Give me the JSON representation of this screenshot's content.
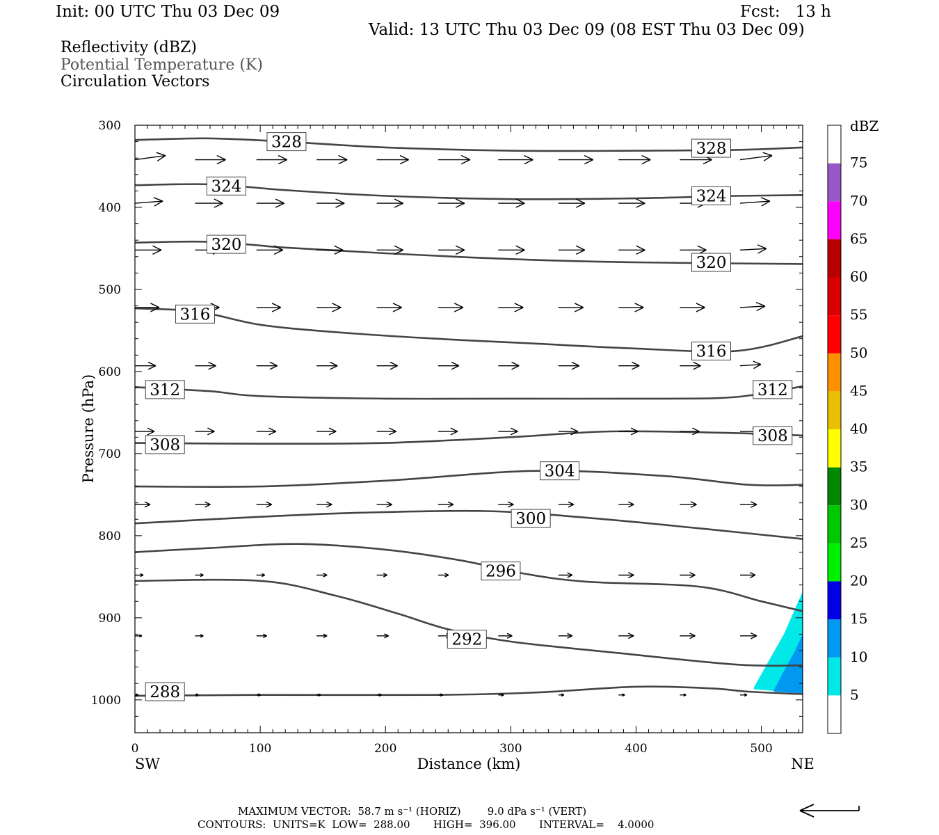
{
  "header": {
    "init": "Init: 00 UTC Thu 03 Dec 09",
    "fcst": "Fcst:   13 h",
    "valid": "Valid: 13 UTC Thu 03 Dec 09 (08 EST Thu 03 Dec 09)",
    "fields": [
      "Reflectivity (dBZ)",
      "Potential Temperature (K)",
      "Circulation Vectors"
    ]
  },
  "footer": {
    "max_vector": "MAXIMUM VECTOR:  58.7 m s⁻¹ (HORIZ)        9.0 dPa s⁻¹ (VERT)",
    "contours": "CONTOURS:  UNITS=K  LOW=  288.00       HIGH=  396.00       INTERVAL=    4.0000"
  },
  "chart_data": {
    "type": "cross-section",
    "xlabel": "Distance (km)",
    "ylabel": "Pressure (hPa)",
    "xlim": [
      0,
      533
    ],
    "ylim": [
      1040,
      300
    ],
    "x_ticks": [
      0,
      100,
      200,
      300,
      400,
      500
    ],
    "y_ticks": [
      300,
      400,
      500,
      600,
      700,
      800,
      900,
      1000
    ],
    "x_end_labels": {
      "left": "SW",
      "right": "NE"
    },
    "colorbar": {
      "unit": "dBZ",
      "levels": [
        5,
        10,
        15,
        20,
        25,
        30,
        35,
        40,
        45,
        50,
        55,
        60,
        65,
        70,
        75
      ],
      "colors": [
        "#ffffff",
        "#00e8e8",
        "#0098f0",
        "#0000e8",
        "#00f000",
        "#00c800",
        "#008800",
        "#ffff00",
        "#e8c000",
        "#ff9000",
        "#ff0000",
        "#d80000",
        "#b80000",
        "#ff00ff",
        "#9858c8",
        "#ffffff"
      ]
    },
    "reflectivity_areas": [
      {
        "dbz_min": 5,
        "color": "#00e8e8",
        "points": [
          [
            494,
            985
          ],
          [
            505,
            955
          ],
          [
            518,
            920
          ],
          [
            533,
            868
          ],
          [
            533,
            992
          ],
          [
            494,
            987
          ]
        ]
      },
      {
        "dbz_min": 10,
        "color": "#0098f0",
        "points": [
          [
            510,
            988
          ],
          [
            518,
            965
          ],
          [
            527,
            940
          ],
          [
            533,
            920
          ],
          [
            533,
            992
          ],
          [
            510,
            990
          ]
        ]
      }
    ],
    "theta_contours": [
      {
        "level": 328,
        "points": [
          [
            0,
            318
          ],
          [
            60,
            316
          ],
          [
            120,
            320
          ],
          [
            200,
            327
          ],
          [
            300,
            331
          ],
          [
            400,
            331
          ],
          [
            480,
            330
          ],
          [
            533,
            327
          ]
        ],
        "labels": [
          [
            121,
            320
          ],
          [
            460,
            328
          ]
        ]
      },
      {
        "level": 324,
        "points": [
          [
            0,
            373
          ],
          [
            60,
            372
          ],
          [
            120,
            379
          ],
          [
            200,
            386
          ],
          [
            300,
            390
          ],
          [
            400,
            389
          ],
          [
            480,
            386
          ],
          [
            533,
            385
          ]
        ],
        "labels": [
          [
            73,
            374
          ],
          [
            460,
            386
          ]
        ]
      },
      {
        "level": 320,
        "points": [
          [
            0,
            443
          ],
          [
            60,
            442
          ],
          [
            120,
            449
          ],
          [
            200,
            456
          ],
          [
            300,
            463
          ],
          [
            400,
            467
          ],
          [
            533,
            469
          ]
        ],
        "labels": [
          [
            73,
            445
          ],
          [
            460,
            467
          ]
        ]
      },
      {
        "level": 316,
        "points": [
          [
            0,
            523
          ],
          [
            50,
            527
          ],
          [
            100,
            543
          ],
          [
            160,
            552
          ],
          [
            240,
            560
          ],
          [
            320,
            566
          ],
          [
            400,
            572
          ],
          [
            480,
            575
          ],
          [
            533,
            557
          ]
        ],
        "labels": [
          [
            48,
            530
          ],
          [
            460,
            575
          ]
        ]
      },
      {
        "level": 312,
        "points": [
          [
            0,
            619
          ],
          [
            60,
            624
          ],
          [
            100,
            630
          ],
          [
            200,
            633
          ],
          [
            300,
            633
          ],
          [
            420,
            633
          ],
          [
            480,
            631
          ],
          [
            533,
            618
          ]
        ],
        "labels": [
          [
            24,
            622
          ],
          [
            509,
            622
          ]
        ]
      },
      {
        "level": 308,
        "points": [
          [
            0,
            687
          ],
          [
            100,
            688
          ],
          [
            200,
            687
          ],
          [
            300,
            680
          ],
          [
            380,
            673
          ],
          [
            480,
            675
          ],
          [
            533,
            678
          ]
        ],
        "labels": [
          [
            24,
            689
          ],
          [
            509,
            678
          ]
        ]
      },
      {
        "level": 304,
        "points": [
          [
            0,
            740
          ],
          [
            100,
            740
          ],
          [
            200,
            733
          ],
          [
            320,
            721
          ],
          [
            420,
            727
          ],
          [
            490,
            738
          ],
          [
            533,
            738
          ]
        ],
        "labels": [
          [
            339,
            721
          ]
        ]
      },
      {
        "level": 300,
        "points": [
          [
            0,
            785
          ],
          [
            100,
            777
          ],
          [
            180,
            772
          ],
          [
            280,
            770
          ],
          [
            360,
            778
          ],
          [
            450,
            791
          ],
          [
            533,
            804
          ]
        ],
        "labels": [
          [
            316,
            779
          ]
        ]
      },
      {
        "level": 296,
        "points": [
          [
            0,
            820
          ],
          [
            60,
            815
          ],
          [
            130,
            810
          ],
          [
            200,
            817
          ],
          [
            260,
            830
          ],
          [
            310,
            846
          ],
          [
            360,
            856
          ],
          [
            450,
            862
          ],
          [
            500,
            880
          ],
          [
            533,
            892
          ]
        ],
        "labels": [
          [
            292,
            843
          ]
        ]
      },
      {
        "level": 292,
        "points": [
          [
            0,
            855
          ],
          [
            100,
            855
          ],
          [
            160,
            873
          ],
          [
            210,
            895
          ],
          [
            250,
            914
          ],
          [
            300,
            929
          ],
          [
            380,
            942
          ],
          [
            480,
            957
          ],
          [
            533,
            958
          ]
        ],
        "labels": [
          [
            265,
            926
          ]
        ]
      },
      {
        "level": 288,
        "points": [
          [
            0,
            995
          ],
          [
            100,
            994
          ],
          [
            240,
            994
          ],
          [
            320,
            991
          ],
          [
            400,
            984
          ],
          [
            460,
            986
          ],
          [
            490,
            990
          ],
          [
            533,
            993
          ]
        ],
        "labels": [
          [
            24,
            990
          ]
        ]
      }
    ],
    "vector_rows": [
      {
        "p": 342,
        "x": [
          0,
          48,
          97,
          145,
          193,
          242,
          290,
          338,
          386,
          435,
          483
        ],
        "dx": [
          44,
          44,
          44,
          44,
          46,
          46,
          50,
          50,
          46,
          46,
          46
        ],
        "dp": [
          -6,
          0,
          0,
          0,
          0,
          0,
          0,
          0,
          0,
          0,
          -6
        ]
      },
      {
        "p": 395,
        "x": [
          0,
          48,
          97,
          145,
          193,
          242,
          290,
          338,
          386,
          435,
          483
        ],
        "dx": [
          40,
          40,
          40,
          40,
          38,
          38,
          38,
          38,
          38,
          38,
          43
        ],
        "dp": [
          -3,
          0,
          0,
          0,
          0,
          0,
          0,
          0,
          0,
          0,
          -3
        ]
      },
      {
        "p": 452,
        "x": [
          0,
          48,
          97,
          145,
          193,
          242,
          290,
          338,
          386,
          435,
          483
        ],
        "dx": [
          38,
          38,
          38,
          38,
          38,
          38,
          38,
          38,
          38,
          38,
          38
        ],
        "dp": [
          0,
          0,
          0,
          0,
          0,
          0,
          0,
          0,
          0,
          0,
          -2
        ]
      },
      {
        "p": 522,
        "x": [
          0,
          48,
          97,
          145,
          193,
          242,
          290,
          338,
          386,
          435,
          483
        ],
        "dx": [
          35,
          35,
          35,
          35,
          36,
          36,
          36,
          36,
          36,
          36,
          36
        ],
        "dp": [
          0,
          0,
          0,
          0,
          0,
          0,
          0,
          0,
          0,
          0,
          -2
        ]
      },
      {
        "p": 593,
        "x": [
          0,
          48,
          97,
          145,
          193,
          242,
          290,
          338,
          386,
          435,
          483
        ],
        "dx": [
          30,
          30,
          30,
          30,
          30,
          30,
          30,
          30,
          30,
          30,
          30
        ],
        "dp": [
          0,
          0,
          0,
          0,
          0,
          0,
          0,
          0,
          0,
          0,
          -2
        ]
      },
      {
        "p": 673,
        "x": [
          0,
          48,
          97,
          145,
          193,
          242,
          290,
          338,
          386,
          435,
          483
        ],
        "dx": [
          28,
          28,
          28,
          28,
          28,
          28,
          28,
          28,
          28,
          28,
          28
        ],
        "dp": [
          0,
          0,
          0,
          0,
          0,
          0,
          0,
          0,
          0,
          0,
          0
        ]
      },
      {
        "p": 762,
        "x": [
          0,
          48,
          97,
          145,
          193,
          242,
          290,
          338,
          386,
          435,
          483
        ],
        "dx": [
          22,
          22,
          22,
          22,
          22,
          22,
          22,
          22,
          22,
          24,
          24
        ],
        "dp": [
          0,
          0,
          0,
          0,
          0,
          0,
          0,
          0,
          0,
          0,
          0
        ]
      },
      {
        "p": 848,
        "x": [
          0,
          48,
          97,
          145,
          193,
          242,
          290,
          338,
          386,
          435,
          483
        ],
        "dx": [
          12,
          12,
          12,
          15,
          15,
          15,
          20,
          20,
          22,
          22,
          22
        ],
        "dp": [
          0,
          0,
          0,
          0,
          0,
          0,
          0,
          0,
          0,
          0,
          0
        ]
      },
      {
        "p": 922,
        "x": [
          0,
          48,
          97,
          145,
          193,
          242,
          290,
          338,
          386,
          435,
          483
        ],
        "dx": [
          10,
          12,
          15,
          15,
          17,
          18,
          20,
          20,
          22,
          22,
          24
        ],
        "dp": [
          0,
          0,
          0,
          0,
          0,
          0,
          0,
          0,
          0,
          0,
          0
        ]
      },
      {
        "p": 994,
        "x": [
          0,
          48,
          97,
          145,
          193,
          242,
          290,
          338,
          386,
          435,
          483
        ],
        "dx": [
          5,
          5,
          6,
          6,
          7,
          7,
          8,
          8,
          9,
          9,
          10
        ],
        "dp": [
          0,
          0,
          0,
          0,
          0,
          0,
          0,
          0,
          0,
          0,
          0
        ]
      }
    ]
  }
}
